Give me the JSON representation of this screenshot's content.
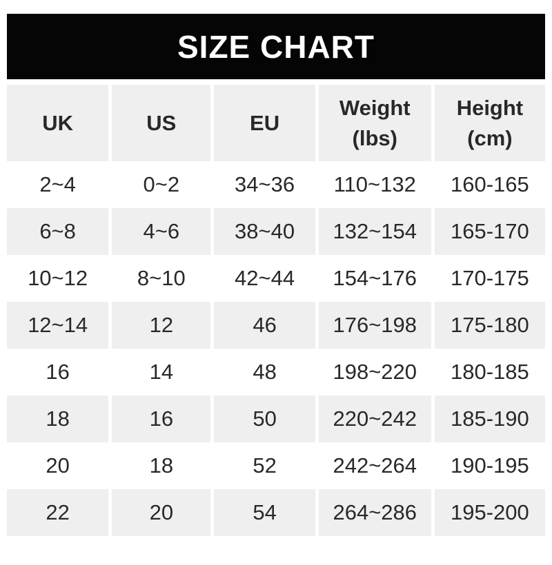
{
  "banner": {
    "title": "SIZE CHART"
  },
  "colors": {
    "banner_bg": "#050505",
    "banner_text": "#ffffff",
    "row_alt_bg": "#f0eff0",
    "row_bg": "#ffffff",
    "text": "#282828"
  },
  "table": {
    "headers": [
      "UK",
      "US",
      "EU",
      "Weight\n(lbs)",
      "Height\n(cm)"
    ]
  },
  "chart_data": {
    "type": "table",
    "title": "SIZE CHART",
    "columns": [
      "UK",
      "US",
      "EU",
      "Weight (lbs)",
      "Height (cm)"
    ],
    "rows": [
      [
        "2~4",
        "0~2",
        "34~36",
        "110~132",
        "160-165"
      ],
      [
        "6~8",
        "4~6",
        "38~40",
        "132~154",
        "165-170"
      ],
      [
        "10~12",
        "8~10",
        "42~44",
        "154~176",
        "170-175"
      ],
      [
        "12~14",
        "12",
        "46",
        "176~198",
        "175-180"
      ],
      [
        "16",
        "14",
        "48",
        "198~220",
        "180-185"
      ],
      [
        "18",
        "16",
        "50",
        "220~242",
        "185-190"
      ],
      [
        "20",
        "18",
        "52",
        "242~264",
        "190-195"
      ],
      [
        "22",
        "20",
        "54",
        "264~286",
        "195-200"
      ]
    ],
    "layout": {
      "alternating_row_shading": true,
      "shaded_rows": [
        "header",
        2,
        4,
        6,
        8
      ]
    }
  }
}
